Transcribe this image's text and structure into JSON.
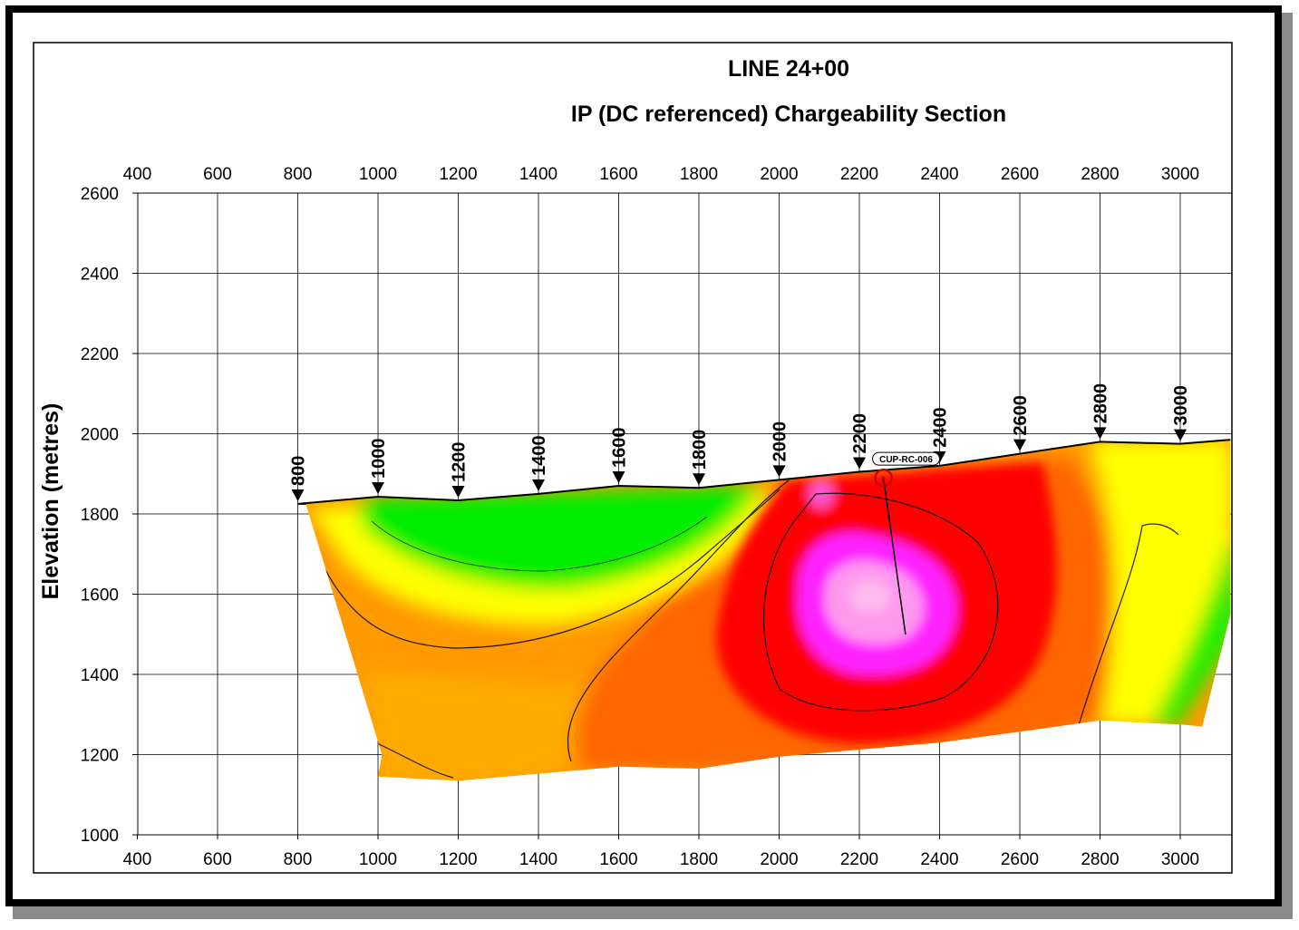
{
  "chart_data": {
    "type": "heatmap",
    "title": "LINE 24+00",
    "subtitle": "IP (DC referenced) Chargeability Section",
    "ylabel": "Elevation (metres)",
    "xlabel": "",
    "xlim": [
      330,
      3055
    ],
    "ylim": [
      1000,
      2600
    ],
    "grid": true,
    "x_ticks": [
      "400",
      "600",
      "800",
      "1000",
      "1200",
      "1400",
      "1600",
      "1800",
      "2000",
      "2200",
      "2400",
      "2600",
      "2800",
      "3000"
    ],
    "y_ticks": [
      "2600",
      "2400",
      "2200",
      "2000",
      "1800",
      "1600",
      "1400",
      "1200",
      "1000"
    ],
    "stations": [
      {
        "label": "800",
        "x": 800,
        "elev": 1825
      },
      {
        "label": "1000",
        "x": 1000,
        "elev": 1843
      },
      {
        "label": "1200",
        "x": 1200,
        "elev": 1834
      },
      {
        "label": "1400",
        "x": 1400,
        "elev": 1850
      },
      {
        "label": "1600",
        "x": 1600,
        "elev": 1870
      },
      {
        "label": "1800",
        "x": 1800,
        "elev": 1865
      },
      {
        "label": "2000",
        "x": 2000,
        "elev": 1885
      },
      {
        "label": "2200",
        "x": 2200,
        "elev": 1905
      },
      {
        "label": "2400",
        "x": 2400,
        "elev": 1920
      },
      {
        "label": "2600",
        "x": 2600,
        "elev": 1950
      },
      {
        "label": "2800",
        "x": 2800,
        "elev": 1980
      },
      {
        "label": "3000",
        "x": 3000,
        "elev": 1975
      }
    ],
    "drillhole": {
      "label": "CUP-RC-006",
      "collar_x": 2260,
      "collar_elev": 1890,
      "end_x": 2315,
      "end_elev": 1500
    },
    "colors": {
      "very_low": "#00ff00",
      "low": "#99ee00",
      "moderate_low": "#ffff00",
      "moderate": "#ffcc00",
      "elevated": "#ff9900",
      "high": "#ff6600",
      "very_high": "#ff0000",
      "anomalous": "#ff00ff",
      "peak": "#ff99ee"
    }
  }
}
